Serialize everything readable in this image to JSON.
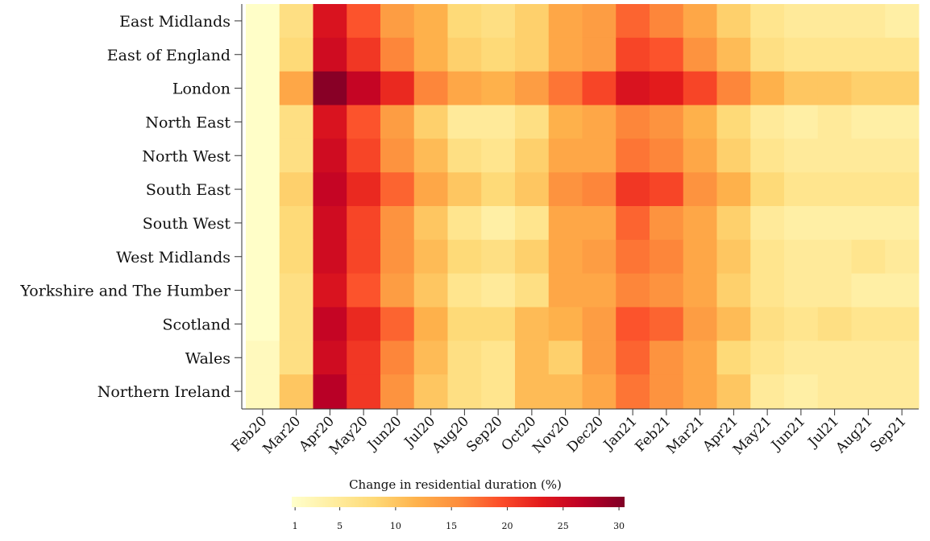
{
  "chart_data": {
    "type": "heatmap",
    "x": [
      "Feb20",
      "Mar20",
      "Apr20",
      "May20",
      "Jun20",
      "Jul20",
      "Aug20",
      "Sep20",
      "Oct20",
      "Nov20",
      "Dec20",
      "Jan21",
      "Feb21",
      "Mar21",
      "Apr21",
      "May21",
      "Jun21",
      "Jul21",
      "Aug21",
      "Sep21"
    ],
    "y": [
      "East Midlands",
      "East of England",
      "London",
      "North East",
      "North West",
      "South East",
      "South West",
      "West Midlands",
      "Yorkshire and The Humber",
      "Scotland",
      "Wales",
      "Northern Ireland"
    ],
    "values": [
      [
        1,
        7,
        24,
        19,
        14,
        12,
        8,
        7,
        9,
        13,
        14,
        18,
        16,
        13,
        9,
        6,
        5,
        5,
        5,
        4
      ],
      [
        1,
        8,
        25,
        21,
        16,
        12,
        9,
        8,
        9,
        13,
        14,
        20,
        19,
        15,
        11,
        7,
        6,
        6,
        6,
        6
      ],
      [
        1,
        13,
        30,
        26,
        22,
        16,
        13,
        12,
        14,
        17,
        20,
        24,
        23,
        20,
        16,
        12,
        10,
        10,
        9,
        9
      ],
      [
        1,
        7,
        24,
        19,
        14,
        9,
        5,
        5,
        7,
        12,
        13,
        16,
        15,
        12,
        8,
        5,
        4,
        5,
        4,
        4
      ],
      [
        1,
        7,
        25,
        20,
        15,
        11,
        7,
        6,
        9,
        13,
        13,
        17,
        16,
        13,
        9,
        6,
        5,
        5,
        5,
        5
      ],
      [
        1,
        9,
        26,
        22,
        18,
        13,
        10,
        8,
        10,
        15,
        16,
        21,
        20,
        15,
        12,
        8,
        6,
        6,
        6,
        6
      ],
      [
        1,
        8,
        25,
        20,
        15,
        10,
        6,
        4,
        6,
        13,
        13,
        18,
        15,
        13,
        9,
        5,
        4,
        4,
        4,
        4
      ],
      [
        1,
        8,
        25,
        20,
        15,
        11,
        8,
        7,
        9,
        13,
        14,
        17,
        16,
        13,
        10,
        6,
        5,
        5,
        6,
        5
      ],
      [
        1,
        7,
        24,
        19,
        14,
        10,
        6,
        5,
        7,
        13,
        13,
        16,
        15,
        13,
        9,
        6,
        5,
        5,
        4,
        4
      ],
      [
        1,
        7,
        26,
        22,
        18,
        12,
        8,
        8,
        11,
        12,
        14,
        19,
        18,
        14,
        11,
        7,
        6,
        7,
        6,
        6
      ],
      [
        2,
        7,
        25,
        21,
        16,
        11,
        7,
        6,
        11,
        9,
        14,
        18,
        15,
        13,
        8,
        6,
        5,
        5,
        5,
        5
      ],
      [
        2,
        10,
        27,
        21,
        15,
        10,
        7,
        6,
        11,
        11,
        13,
        17,
        15,
        13,
        10,
        5,
        4,
        5,
        5,
        5
      ]
    ],
    "colorbar_title": "Change in residential duration (%)",
    "zlim": [
      0.7,
      30.5
    ],
    "zticks": [
      1,
      5,
      10,
      15,
      20,
      25,
      30
    ],
    "colors": [
      "#ffffcc",
      "#ffeda0",
      "#fed976",
      "#feb24c",
      "#fd8d3c",
      "#fc4e2a",
      "#e31a1c",
      "#bd0026",
      "#800026"
    ]
  }
}
